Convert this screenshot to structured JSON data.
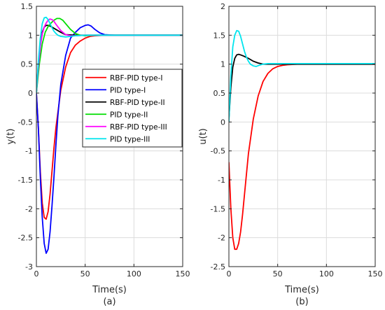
{
  "chart_data": [
    {
      "type": "line",
      "caption": "(a)",
      "xlabel": "Time(s)",
      "ylabel": "y(t)",
      "xlim": [
        0,
        150
      ],
      "ylim": [
        -3,
        1.5
      ],
      "xticks": [
        0,
        50,
        100,
        150
      ],
      "yticks": [
        -3,
        -2.5,
        -2,
        -1.5,
        -1,
        -0.5,
        0,
        0.5,
        1,
        1.5
      ],
      "grid": true,
      "legend": "right-middle",
      "series": [
        {
          "name": "RBF-PID type-I",
          "color": "#ff0000",
          "x": [
            0,
            2,
            4,
            6,
            8,
            10,
            12,
            14,
            16,
            18,
            20,
            25,
            30,
            35,
            40,
            45,
            50,
            55,
            60,
            70,
            80,
            100,
            150
          ],
          "y": [
            0,
            -0.6,
            -1.35,
            -1.9,
            -2.15,
            -2.18,
            -2.05,
            -1.75,
            -1.35,
            -0.95,
            -0.6,
            0.05,
            0.45,
            0.7,
            0.83,
            0.9,
            0.95,
            0.98,
            0.99,
            1.0,
            1.0,
            1.0,
            1.0
          ]
        },
        {
          "name": "PID type-I",
          "color": "#0000ff",
          "x": [
            0,
            2,
            4,
            6,
            8,
            10,
            12,
            14,
            16,
            18,
            20,
            22,
            25,
            30,
            35,
            40,
            45,
            50,
            53,
            56,
            60,
            65,
            70,
            80,
            100,
            150
          ],
          "y": [
            0,
            -0.6,
            -1.45,
            -2.15,
            -2.6,
            -2.77,
            -2.7,
            -2.4,
            -1.95,
            -1.45,
            -0.9,
            -0.4,
            0.15,
            0.65,
            0.95,
            1.05,
            1.13,
            1.17,
            1.18,
            1.16,
            1.1,
            1.04,
            1.01,
            1.0,
            1.0,
            1.0
          ]
        },
        {
          "name": "RBF-PID type-II",
          "color": "#000000",
          "x": [
            0,
            2,
            4,
            6,
            8,
            10,
            12,
            15,
            20,
            25,
            30,
            40,
            50,
            60,
            80,
            100,
            150
          ],
          "y": [
            0,
            0.5,
            0.85,
            1.05,
            1.14,
            1.17,
            1.17,
            1.15,
            1.1,
            1.05,
            1.01,
            1.0,
            1.0,
            1.0,
            1.0,
            1.0,
            1.0
          ]
        },
        {
          "name": "PID type-II",
          "color": "#00dd00",
          "x": [
            0,
            3,
            6,
            9,
            12,
            15,
            18,
            21,
            24,
            27,
            30,
            35,
            40,
            45,
            50,
            60,
            80,
            100,
            150
          ],
          "y": [
            0,
            0.5,
            0.85,
            1.05,
            1.15,
            1.21,
            1.26,
            1.29,
            1.29,
            1.26,
            1.2,
            1.1,
            1.03,
            1.0,
            0.99,
            1.0,
            1.0,
            1.0,
            1.0
          ]
        },
        {
          "name": "RBF-PID type-III",
          "color": "#ff00ff",
          "x": [
            0,
            2,
            4,
            6,
            8,
            10,
            12,
            14,
            16,
            18,
            20,
            25,
            30,
            35,
            40,
            50,
            60,
            80,
            100,
            150
          ],
          "y": [
            0,
            0.45,
            0.8,
            1.02,
            1.14,
            1.21,
            1.26,
            1.28,
            1.27,
            1.24,
            1.19,
            1.08,
            1.01,
            0.99,
            0.99,
            1.0,
            1.0,
            1.0,
            1.0,
            1.0
          ]
        },
        {
          "name": "PID type-III",
          "color": "#00e5ee",
          "x": [
            0,
            2,
            4,
            6,
            8,
            10,
            12,
            14,
            16,
            18,
            20,
            22,
            25,
            30,
            35,
            40,
            50,
            60,
            80,
            100,
            150
          ],
          "y": [
            0,
            0.55,
            0.95,
            1.2,
            1.3,
            1.31,
            1.27,
            1.2,
            1.13,
            1.07,
            1.03,
            1.0,
            0.98,
            0.97,
            0.98,
            0.99,
            1.0,
            1.0,
            1.0,
            1.0,
            1.0
          ]
        }
      ]
    },
    {
      "type": "line",
      "caption": "(b)",
      "xlabel": "Time(s)",
      "ylabel": "u(t)",
      "xlim": [
        0,
        150
      ],
      "ylim": [
        -2.5,
        2
      ],
      "xticks": [
        0,
        50,
        100,
        150
      ],
      "yticks": [
        -2.5,
        -2,
        -1.5,
        -1,
        -0.5,
        0,
        0.5,
        1,
        1.5,
        2
      ],
      "grid": true,
      "series": [
        {
          "color": "#ff0000",
          "x": [
            0,
            2,
            4,
            6,
            8,
            10,
            12,
            14,
            16,
            18,
            20,
            25,
            30,
            35,
            40,
            45,
            50,
            55,
            60,
            70,
            80,
            100,
            150
          ],
          "y": [
            -0.7,
            -1.5,
            -2.0,
            -2.2,
            -2.2,
            -2.1,
            -1.9,
            -1.6,
            -1.25,
            -0.9,
            -0.55,
            0.05,
            0.45,
            0.7,
            0.84,
            0.92,
            0.96,
            0.98,
            0.99,
            1.0,
            1.0,
            1.0,
            1.0
          ]
        },
        {
          "color": "#000000",
          "x": [
            0,
            2,
            4,
            6,
            8,
            10,
            12,
            15,
            20,
            25,
            30,
            35,
            40,
            50,
            60,
            80,
            100,
            150
          ],
          "y": [
            0.05,
            0.6,
            0.95,
            1.1,
            1.16,
            1.17,
            1.16,
            1.14,
            1.1,
            1.05,
            1.02,
            1.0,
            1.0,
            1.0,
            1.0,
            1.0,
            1.0,
            1.0
          ]
        },
        {
          "color": "#00e5ee",
          "x": [
            0,
            2,
            4,
            6,
            8,
            10,
            12,
            14,
            16,
            18,
            20,
            22,
            25,
            28,
            31,
            35,
            40,
            50,
            60,
            80,
            100,
            150
          ],
          "y": [
            0,
            0.8,
            1.3,
            1.5,
            1.58,
            1.57,
            1.48,
            1.35,
            1.22,
            1.12,
            1.05,
            1.0,
            0.97,
            0.96,
            0.98,
            1.0,
            1.01,
            1.01,
            1.01,
            1.01,
            1.01,
            1.01
          ]
        }
      ]
    }
  ]
}
